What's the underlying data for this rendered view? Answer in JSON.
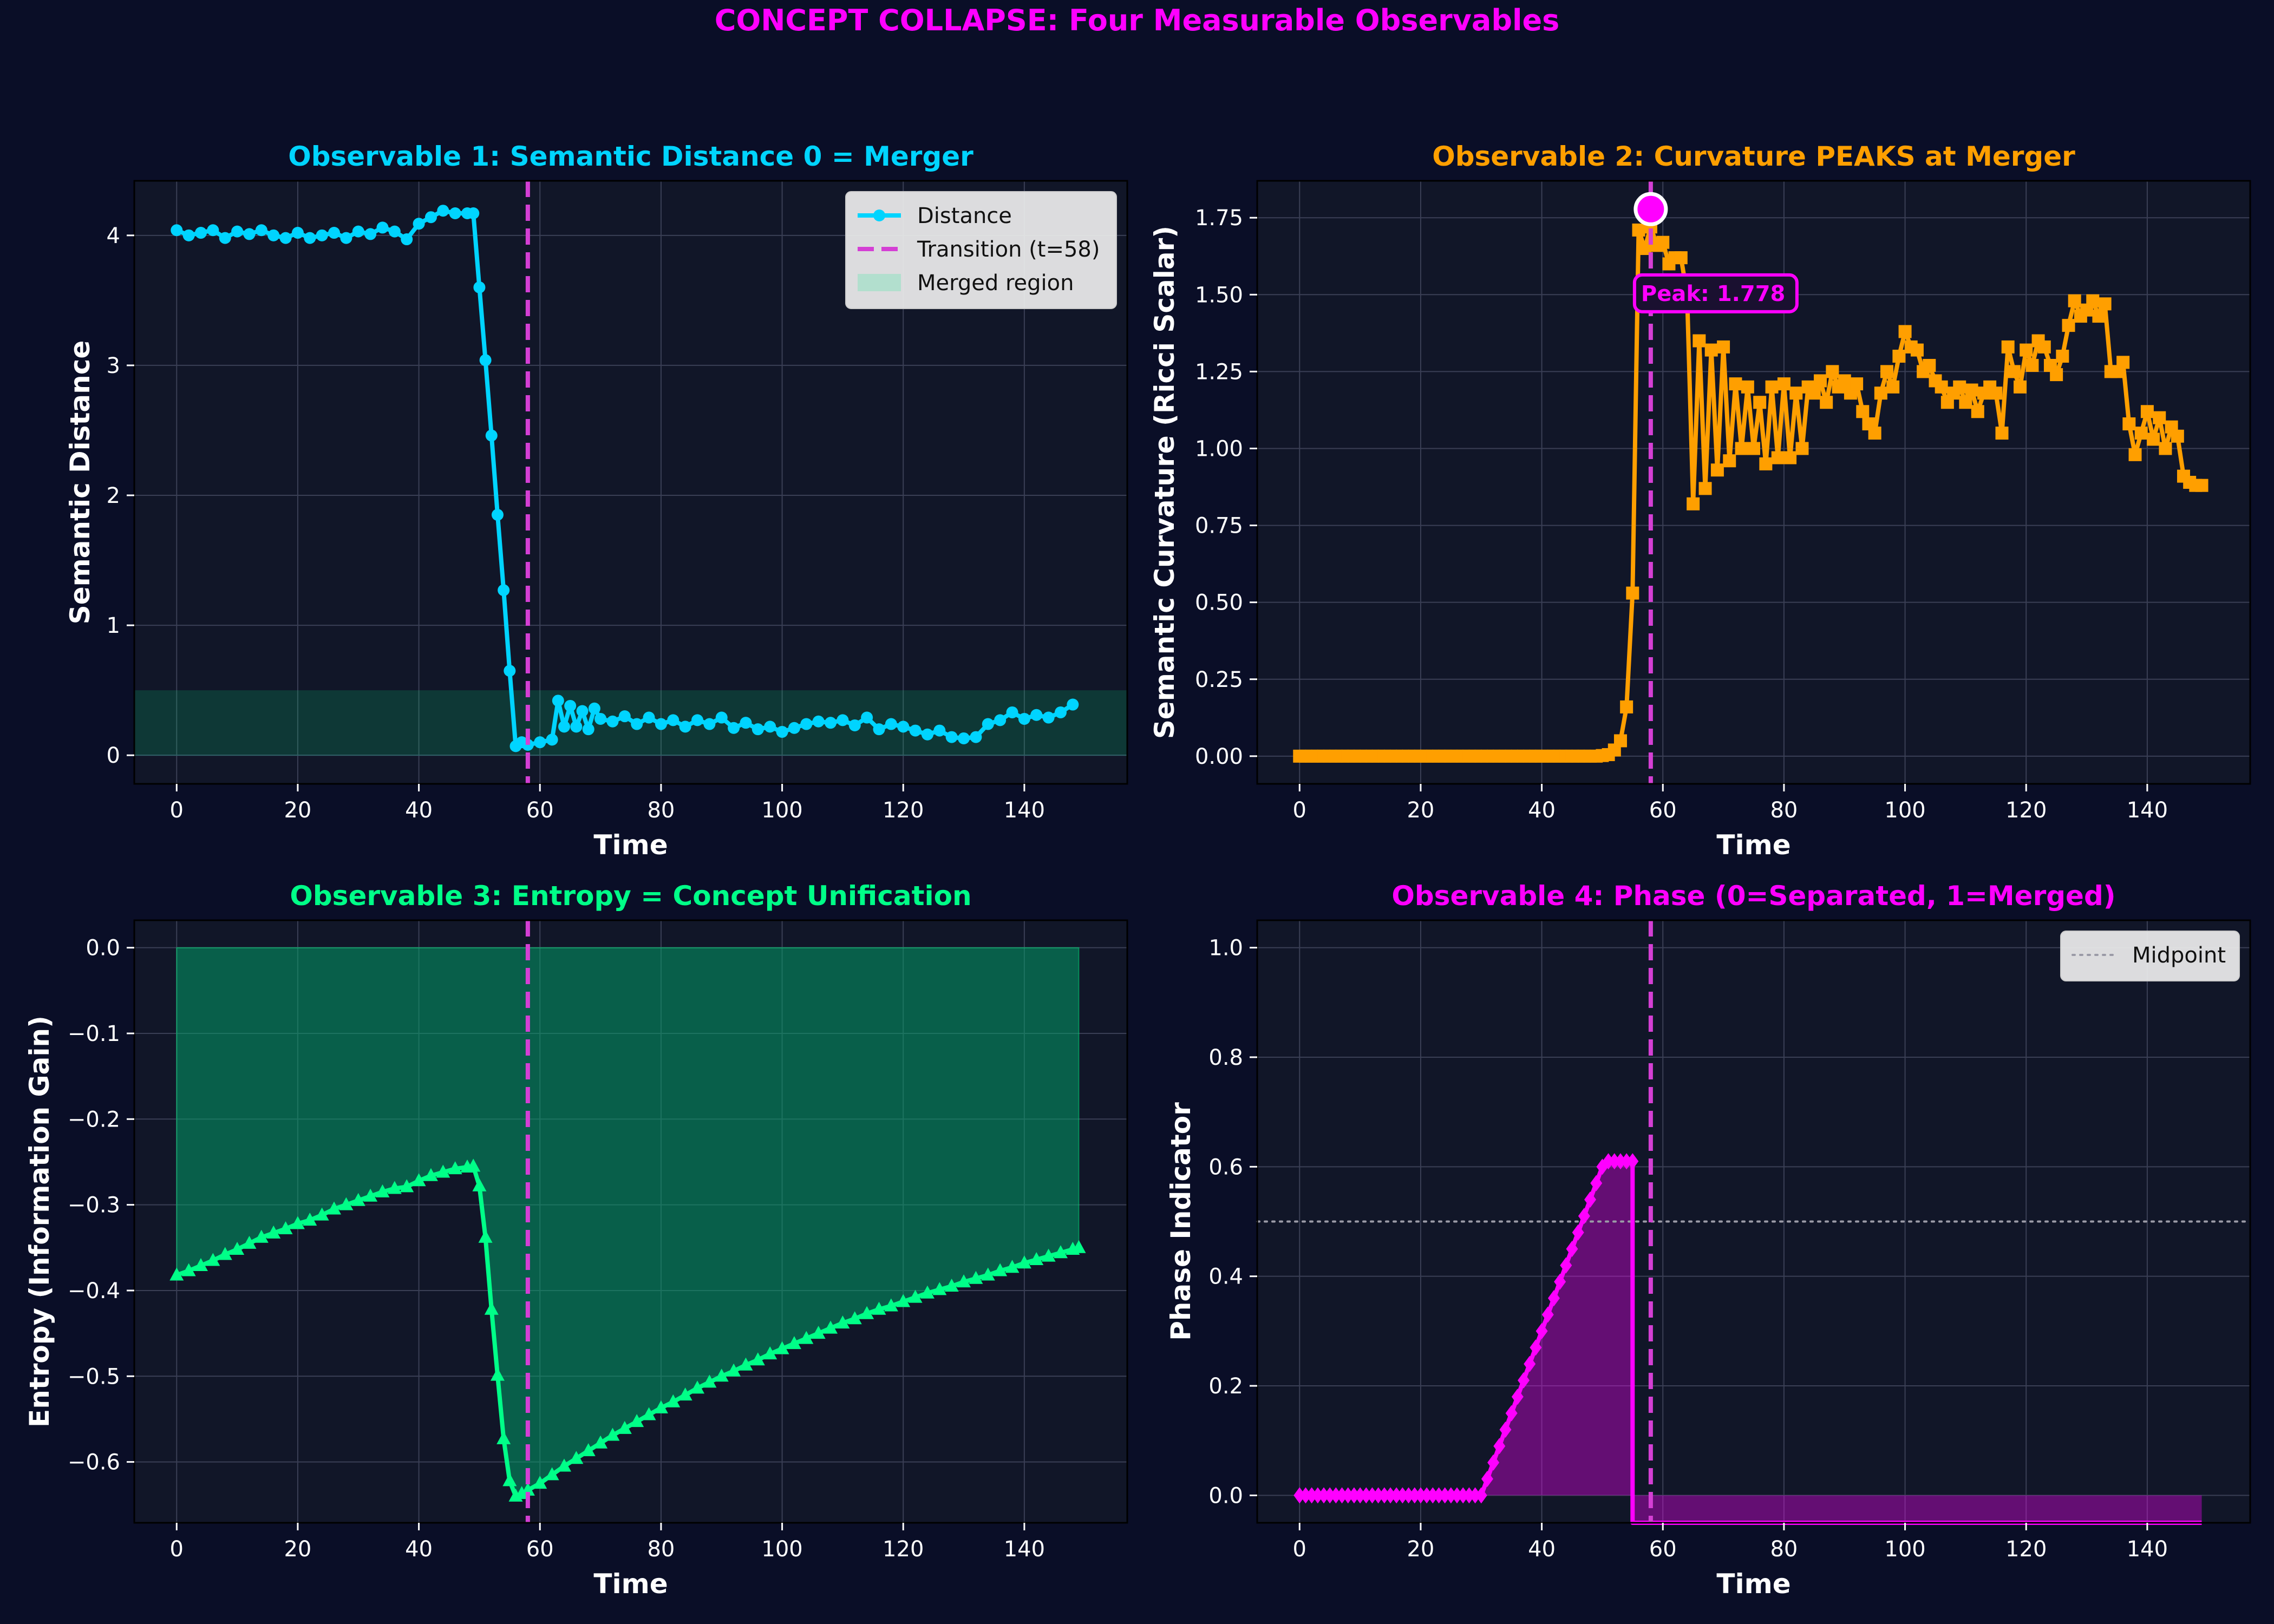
{
  "figure_title": "CONCEPT COLLAPSE: Four Measurable Observables",
  "colors": {
    "figure_bg": "#0a0e27",
    "axes_bg": "#111628",
    "title": "#ff00ff",
    "distance": "#00d4ff",
    "curvature": "#ff9f00",
    "entropy": "#00ff88",
    "phase": "#ff00ff",
    "transition": "#d43fd4",
    "text": "#ffffff",
    "grid": "#3a3f55"
  },
  "icons": {
    "distance_marker": "circle-marker",
    "curvature_marker": "square-marker",
    "entropy_marker": "triangle-marker",
    "phase_marker": "diamond-marker"
  },
  "chart_data": [
    {
      "id": "distance",
      "type": "line",
      "title": "Observable 1: Semantic Distance  0 = Merger",
      "xlabel": "Time",
      "ylabel": "Semantic Distance",
      "xlim": [
        -7,
        157
      ],
      "ylim": [
        -0.22,
        4.42
      ],
      "xticks": [
        0,
        20,
        40,
        60,
        80,
        100,
        120,
        140
      ],
      "yticks": [
        0,
        1,
        2,
        3,
        4
      ],
      "grid": true,
      "legend": {
        "placement": "top-right",
        "entries": [
          "Distance",
          "Transition (t=58)",
          "Merged region"
        ]
      },
      "transition_t": 58,
      "merged_region": [
        0,
        0.5
      ],
      "series": [
        {
          "name": "Distance",
          "marker": "circle",
          "x": [
            0,
            2,
            4,
            6,
            8,
            10,
            12,
            14,
            16,
            18,
            20,
            22,
            24,
            26,
            28,
            30,
            32,
            34,
            36,
            38,
            40,
            42,
            44,
            46,
            48,
            49,
            50,
            51,
            52,
            53,
            54,
            55,
            56,
            57,
            58,
            60,
            62,
            63,
            64,
            65,
            66,
            67,
            68,
            69,
            70,
            72,
            74,
            76,
            78,
            80,
            82,
            84,
            86,
            88,
            90,
            92,
            94,
            96,
            98,
            100,
            102,
            104,
            106,
            108,
            110,
            112,
            114,
            116,
            118,
            120,
            122,
            124,
            126,
            128,
            130,
            132,
            134,
            136,
            138,
            140,
            142,
            144,
            146,
            148
          ],
          "y": [
            4.04,
            4.0,
            4.02,
            4.04,
            3.98,
            4.03,
            4.01,
            4.04,
            4.0,
            3.98,
            4.02,
            3.98,
            4.0,
            4.02,
            3.98,
            4.03,
            4.01,
            4.06,
            4.03,
            3.97,
            4.09,
            4.14,
            4.19,
            4.17,
            4.17,
            4.17,
            3.6,
            3.04,
            2.46,
            1.85,
            1.27,
            0.65,
            0.07,
            0.1,
            0.08,
            0.1,
            0.12,
            0.42,
            0.22,
            0.38,
            0.22,
            0.34,
            0.2,
            0.36,
            0.28,
            0.26,
            0.3,
            0.24,
            0.29,
            0.24,
            0.27,
            0.22,
            0.27,
            0.24,
            0.29,
            0.21,
            0.25,
            0.2,
            0.22,
            0.18,
            0.21,
            0.24,
            0.26,
            0.25,
            0.27,
            0.23,
            0.29,
            0.2,
            0.24,
            0.22,
            0.19,
            0.16,
            0.19,
            0.14,
            0.13,
            0.14,
            0.24,
            0.27,
            0.33,
            0.28,
            0.31,
            0.29,
            0.33,
            0.39
          ]
        }
      ]
    },
    {
      "id": "curvature",
      "type": "line",
      "title": "Observable 2: Curvature PEAKS at Merger",
      "xlabel": "Time",
      "ylabel": "Semantic Curvature (Ricci Scalar)",
      "xlim": [
        -7,
        157
      ],
      "ylim": [
        -0.09,
        1.87
      ],
      "xticks": [
        0,
        20,
        40,
        60,
        80,
        100,
        120,
        140
      ],
      "yticks": [
        0.0,
        0.25,
        0.5,
        0.75,
        1.0,
        1.25,
        1.5,
        1.75
      ],
      "ytick_format": 2,
      "grid": true,
      "transition_t": 58,
      "peak": {
        "x": 58,
        "y": 1.778,
        "label": "Peak: 1.778"
      },
      "series": [
        {
          "name": "",
          "marker": "square",
          "x": [
            0,
            1,
            2,
            3,
            4,
            5,
            6,
            7,
            8,
            9,
            10,
            11,
            12,
            13,
            14,
            15,
            16,
            17,
            18,
            19,
            20,
            21,
            22,
            23,
            24,
            25,
            26,
            27,
            28,
            29,
            30,
            31,
            32,
            33,
            34,
            35,
            36,
            37,
            38,
            39,
            40,
            41,
            42,
            43,
            44,
            45,
            46,
            47,
            48,
            49,
            50,
            51,
            52,
            53,
            54,
            55,
            56,
            57,
            58,
            59,
            60,
            61,
            62,
            63,
            64,
            65,
            66,
            67,
            68,
            69,
            70,
            71,
            72,
            73,
            74,
            75,
            76,
            77,
            78,
            79,
            80,
            81,
            82,
            83,
            84,
            85,
            86,
            87,
            88,
            89,
            90,
            91,
            92,
            93,
            94,
            95,
            96,
            97,
            98,
            99,
            100,
            101,
            102,
            103,
            104,
            105,
            106,
            107,
            108,
            109,
            110,
            111,
            112,
            113,
            114,
            115,
            116,
            117,
            118,
            119,
            120,
            121,
            122,
            123,
            124,
            125,
            126,
            127,
            128,
            129,
            130,
            131,
            132,
            133,
            134,
            135,
            136,
            137,
            138,
            139,
            140,
            141,
            142,
            143,
            144,
            145,
            146,
            147,
            148,
            149
          ],
          "y": [
            0,
            0,
            0,
            0,
            0,
            0,
            0,
            0,
            0,
            0,
            0,
            0,
            0,
            0,
            0,
            0,
            0,
            0,
            0,
            0,
            0,
            0,
            0,
            0,
            0,
            0,
            0,
            0,
            0,
            0,
            0,
            0,
            0,
            0,
            0,
            0,
            0,
            0,
            0,
            0,
            0,
            0,
            0,
            0,
            0,
            0,
            0,
            0,
            0,
            0,
            0.002,
            0.005,
            0.02,
            0.05,
            0.16,
            0.53,
            1.71,
            1.65,
            1.72,
            1.66,
            1.67,
            1.6,
            1.62,
            1.62,
            1.5,
            0.82,
            1.35,
            0.87,
            1.32,
            0.93,
            1.33,
            0.96,
            1.21,
            1.0,
            1.2,
            1.0,
            1.15,
            0.95,
            1.2,
            0.97,
            1.21,
            0.97,
            1.18,
            1.0,
            1.2,
            1.18,
            1.22,
            1.15,
            1.25,
            1.2,
            1.22,
            1.18,
            1.21,
            1.12,
            1.08,
            1.05,
            1.18,
            1.25,
            1.2,
            1.3,
            1.38,
            1.33,
            1.32,
            1.25,
            1.27,
            1.22,
            1.2,
            1.15,
            1.18,
            1.2,
            1.15,
            1.19,
            1.12,
            1.18,
            1.2,
            1.18,
            1.05,
            1.33,
            1.25,
            1.2,
            1.32,
            1.27,
            1.35,
            1.33,
            1.27,
            1.24,
            1.3,
            1.4,
            1.48,
            1.43,
            1.45,
            1.48,
            1.43,
            1.47,
            1.25,
            1.25,
            1.28,
            1.08,
            0.98,
            1.05,
            1.12,
            1.03,
            1.1,
            1.0,
            1.07,
            1.04,
            0.91,
            0.89,
            0.88,
            0.88
          ]
        }
      ]
    },
    {
      "id": "entropy",
      "type": "area",
      "title": "Observable 3: Entropy  = Concept Unification",
      "xlabel": "Time",
      "ylabel": "Entropy (Information Gain)",
      "xlim": [
        -7,
        157
      ],
      "ylim": [
        -0.671,
        0.032
      ],
      "xticks": [
        0,
        20,
        40,
        60,
        80,
        100,
        120,
        140
      ],
      "yticks": [
        0.0,
        -0.1,
        -0.2,
        -0.3,
        -0.4,
        -0.5,
        -0.6
      ],
      "ytick_format": 1,
      "grid": true,
      "transition_t": 58,
      "series": [
        {
          "name": "",
          "marker": "triangle",
          "x": [
            0,
            2,
            4,
            6,
            8,
            10,
            12,
            14,
            16,
            18,
            20,
            22,
            24,
            26,
            28,
            30,
            32,
            34,
            36,
            38,
            40,
            42,
            44,
            46,
            48,
            49,
            50,
            51,
            52,
            53,
            54,
            55,
            56,
            57,
            58,
            60,
            62,
            64,
            66,
            68,
            70,
            72,
            74,
            76,
            78,
            80,
            82,
            84,
            86,
            88,
            90,
            92,
            94,
            96,
            98,
            100,
            102,
            104,
            106,
            108,
            110,
            112,
            114,
            116,
            118,
            120,
            122,
            124,
            126,
            128,
            130,
            132,
            134,
            136,
            138,
            140,
            142,
            144,
            146,
            148,
            149
          ],
          "y": [
            -0.382,
            -0.377,
            -0.371,
            -0.365,
            -0.358,
            -0.352,
            -0.345,
            -0.338,
            -0.333,
            -0.328,
            -0.322,
            -0.318,
            -0.312,
            -0.305,
            -0.3,
            -0.295,
            -0.29,
            -0.285,
            -0.281,
            -0.279,
            -0.272,
            -0.266,
            -0.262,
            -0.258,
            -0.256,
            -0.255,
            -0.278,
            -0.338,
            -0.422,
            -0.499,
            -0.573,
            -0.622,
            -0.64,
            -0.637,
            -0.633,
            -0.625,
            -0.615,
            -0.605,
            -0.596,
            -0.587,
            -0.578,
            -0.569,
            -0.561,
            -0.553,
            -0.545,
            -0.537,
            -0.53,
            -0.522,
            -0.514,
            -0.507,
            -0.5,
            -0.494,
            -0.487,
            -0.481,
            -0.474,
            -0.468,
            -0.462,
            -0.456,
            -0.45,
            -0.444,
            -0.438,
            -0.433,
            -0.427,
            -0.422,
            -0.418,
            -0.413,
            -0.408,
            -0.403,
            -0.399,
            -0.395,
            -0.39,
            -0.386,
            -0.382,
            -0.377,
            -0.373,
            -0.368,
            -0.364,
            -0.36,
            -0.356,
            -0.352,
            -0.35
          ]
        }
      ]
    },
    {
      "id": "phase",
      "type": "line",
      "title": "Observable 4: Phase (0=Separated, 1=Merged)",
      "xlabel": "Time",
      "ylabel": "Phase Indicator",
      "xlim": [
        -7,
        157
      ],
      "ylim": [
        -0.05,
        1.05
      ],
      "xticks": [
        0,
        20,
        40,
        60,
        80,
        100,
        120,
        140
      ],
      "yticks": [
        0.0,
        0.2,
        0.4,
        0.6,
        0.8,
        1.0
      ],
      "ytick_format": 1,
      "grid": true,
      "transition_t": 58,
      "midpoint": 0.5,
      "legend": {
        "placement": "top-right",
        "entries": [
          "Midpoint"
        ]
      },
      "series": [
        {
          "name": "",
          "marker": "diamond",
          "x": [
            0,
            1,
            2,
            3,
            4,
            5,
            6,
            7,
            8,
            9,
            10,
            11,
            12,
            13,
            14,
            15,
            16,
            17,
            18,
            19,
            20,
            21,
            22,
            23,
            24,
            25,
            26,
            27,
            28,
            29,
            30,
            31,
            32,
            33,
            34,
            35,
            36,
            37,
            38,
            39,
            40,
            41,
            42,
            43,
            44,
            45,
            46,
            47,
            48,
            49,
            50,
            51,
            52,
            53,
            54,
            55,
            55,
            56,
            57,
            58,
            59,
            60,
            65,
            70,
            75,
            80,
            85,
            90,
            95,
            100,
            105,
            110,
            115,
            120,
            125,
            130,
            135,
            140,
            145,
            149
          ],
          "y": [
            0,
            0,
            0,
            0,
            0,
            0,
            0,
            0,
            0,
            0,
            0,
            0,
            0,
            0,
            0,
            0,
            0,
            0,
            0,
            0,
            0,
            0,
            0,
            0,
            0,
            0,
            0,
            0,
            0,
            0,
            0,
            0.03,
            0.06,
            0.09,
            0.12,
            0.15,
            0.18,
            0.21,
            0.24,
            0.27,
            0.3,
            0.33,
            0.36,
            0.39,
            0.42,
            0.45,
            0.48,
            0.51,
            0.54,
            0.57,
            0.6,
            0.61,
            0.61,
            0.61,
            0.61,
            0.61,
            -0.05,
            -0.05,
            -0.05,
            -0.05,
            -0.05,
            -0.05,
            -0.05,
            -0.05,
            -0.05,
            -0.05,
            -0.05,
            -0.05,
            -0.05,
            -0.05,
            -0.05,
            -0.05,
            -0.05,
            -0.05,
            -0.05,
            -0.05,
            -0.05,
            -0.05,
            -0.05,
            -0.05
          ],
          "markers_until": 55
        }
      ]
    }
  ]
}
